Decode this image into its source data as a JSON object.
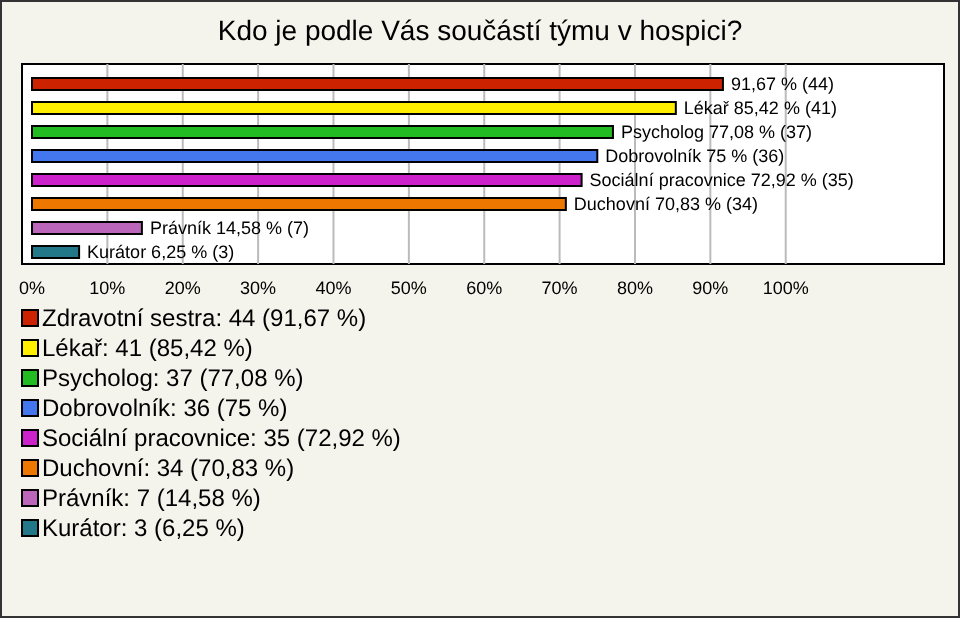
{
  "chart_data": {
    "type": "bar",
    "orientation": "horizontal",
    "title": "Kdo je podle Vás součástí týmu v hospici?",
    "categories": [
      null,
      null,
      null,
      null,
      null,
      null,
      null,
      null
    ],
    "xlim": [
      0,
      121
    ],
    "xticks": [
      {
        "value": 0,
        "label": "0%"
      },
      {
        "value": 10,
        "label": "10%"
      },
      {
        "value": 20,
        "label": "20%"
      },
      {
        "value": 30,
        "label": "30%"
      },
      {
        "value": 40,
        "label": "40%"
      },
      {
        "value": 50,
        "label": "50%"
      },
      {
        "value": 60,
        "label": "60%"
      },
      {
        "value": 70,
        "label": "70%"
      },
      {
        "value": 80,
        "label": "80%"
      },
      {
        "value": 90,
        "label": "90%"
      },
      {
        "value": 100,
        "label": "100%"
      }
    ],
    "grid": "x",
    "legend": "bottom",
    "series": [
      {
        "name": "Zdravotní sestra: 44 (91,67 %)",
        "color": "#cc2200",
        "values": [
          91.67,
          null,
          null,
          null,
          null,
          null,
          null,
          null
        ],
        "value_labels": [
          "91,67 % (44)",
          null,
          null,
          null,
          null,
          null,
          null,
          null
        ]
      },
      {
        "name": "Lékař: 41 (85,42 %)",
        "color": "#ffee00",
        "values": [
          null,
          85.42,
          null,
          null,
          null,
          null,
          null,
          null
        ],
        "value_labels": [
          null,
          "Lékař 85,42 % (41)",
          null,
          null,
          null,
          null,
          null,
          null
        ]
      },
      {
        "name": "Psycholog: 37 (77,08 %)",
        "color": "#22bb22",
        "values": [
          null,
          null,
          77.08,
          null,
          null,
          null,
          null,
          null
        ],
        "value_labels": [
          null,
          null,
          "Psycholog 77,08 % (37)",
          null,
          null,
          null,
          null,
          null
        ]
      },
      {
        "name": "Dobrovolník: 36 (75 %)",
        "color": "#4477ee",
        "values": [
          null,
          null,
          null,
          75,
          null,
          null,
          null,
          null
        ],
        "value_labels": [
          null,
          null,
          null,
          "Dobrovolník 75 % (36)",
          null,
          null,
          null,
          null
        ]
      },
      {
        "name": "Sociální pracovnice: 35 (72,92 %)",
        "color": "#cc22cc",
        "values": [
          null,
          null,
          null,
          null,
          72.92,
          null,
          null,
          null
        ],
        "value_labels": [
          null,
          null,
          null,
          null,
          "Sociální pracovnice 72,92 % (35)",
          null,
          null,
          null
        ]
      },
      {
        "name": "Duchovní: 34 (70,83 %)",
        "color": "#ee7700",
        "values": [
          null,
          null,
          null,
          null,
          null,
          70.83,
          null,
          null
        ],
        "value_labels": [
          null,
          null,
          null,
          null,
          null,
          "Duchovní 70,83 % (34)",
          null,
          null
        ]
      },
      {
        "name": "Právník: 7 (14,58 %)",
        "color": "#bb66bb",
        "values": [
          null,
          null,
          null,
          null,
          null,
          null,
          14.58,
          null
        ],
        "value_labels": [
          null,
          null,
          null,
          null,
          null,
          null,
          "Právník 14,58 % (7)",
          null
        ]
      },
      {
        "name": "Kurátor: 3 (6,25 %)",
        "color": "#227788",
        "values": [
          null,
          null,
          null,
          null,
          null,
          null,
          null,
          6.25
        ],
        "value_labels": [
          null,
          null,
          null,
          null,
          null,
          null,
          null,
          "Kurátor 6,25 % (3)"
        ]
      }
    ]
  }
}
